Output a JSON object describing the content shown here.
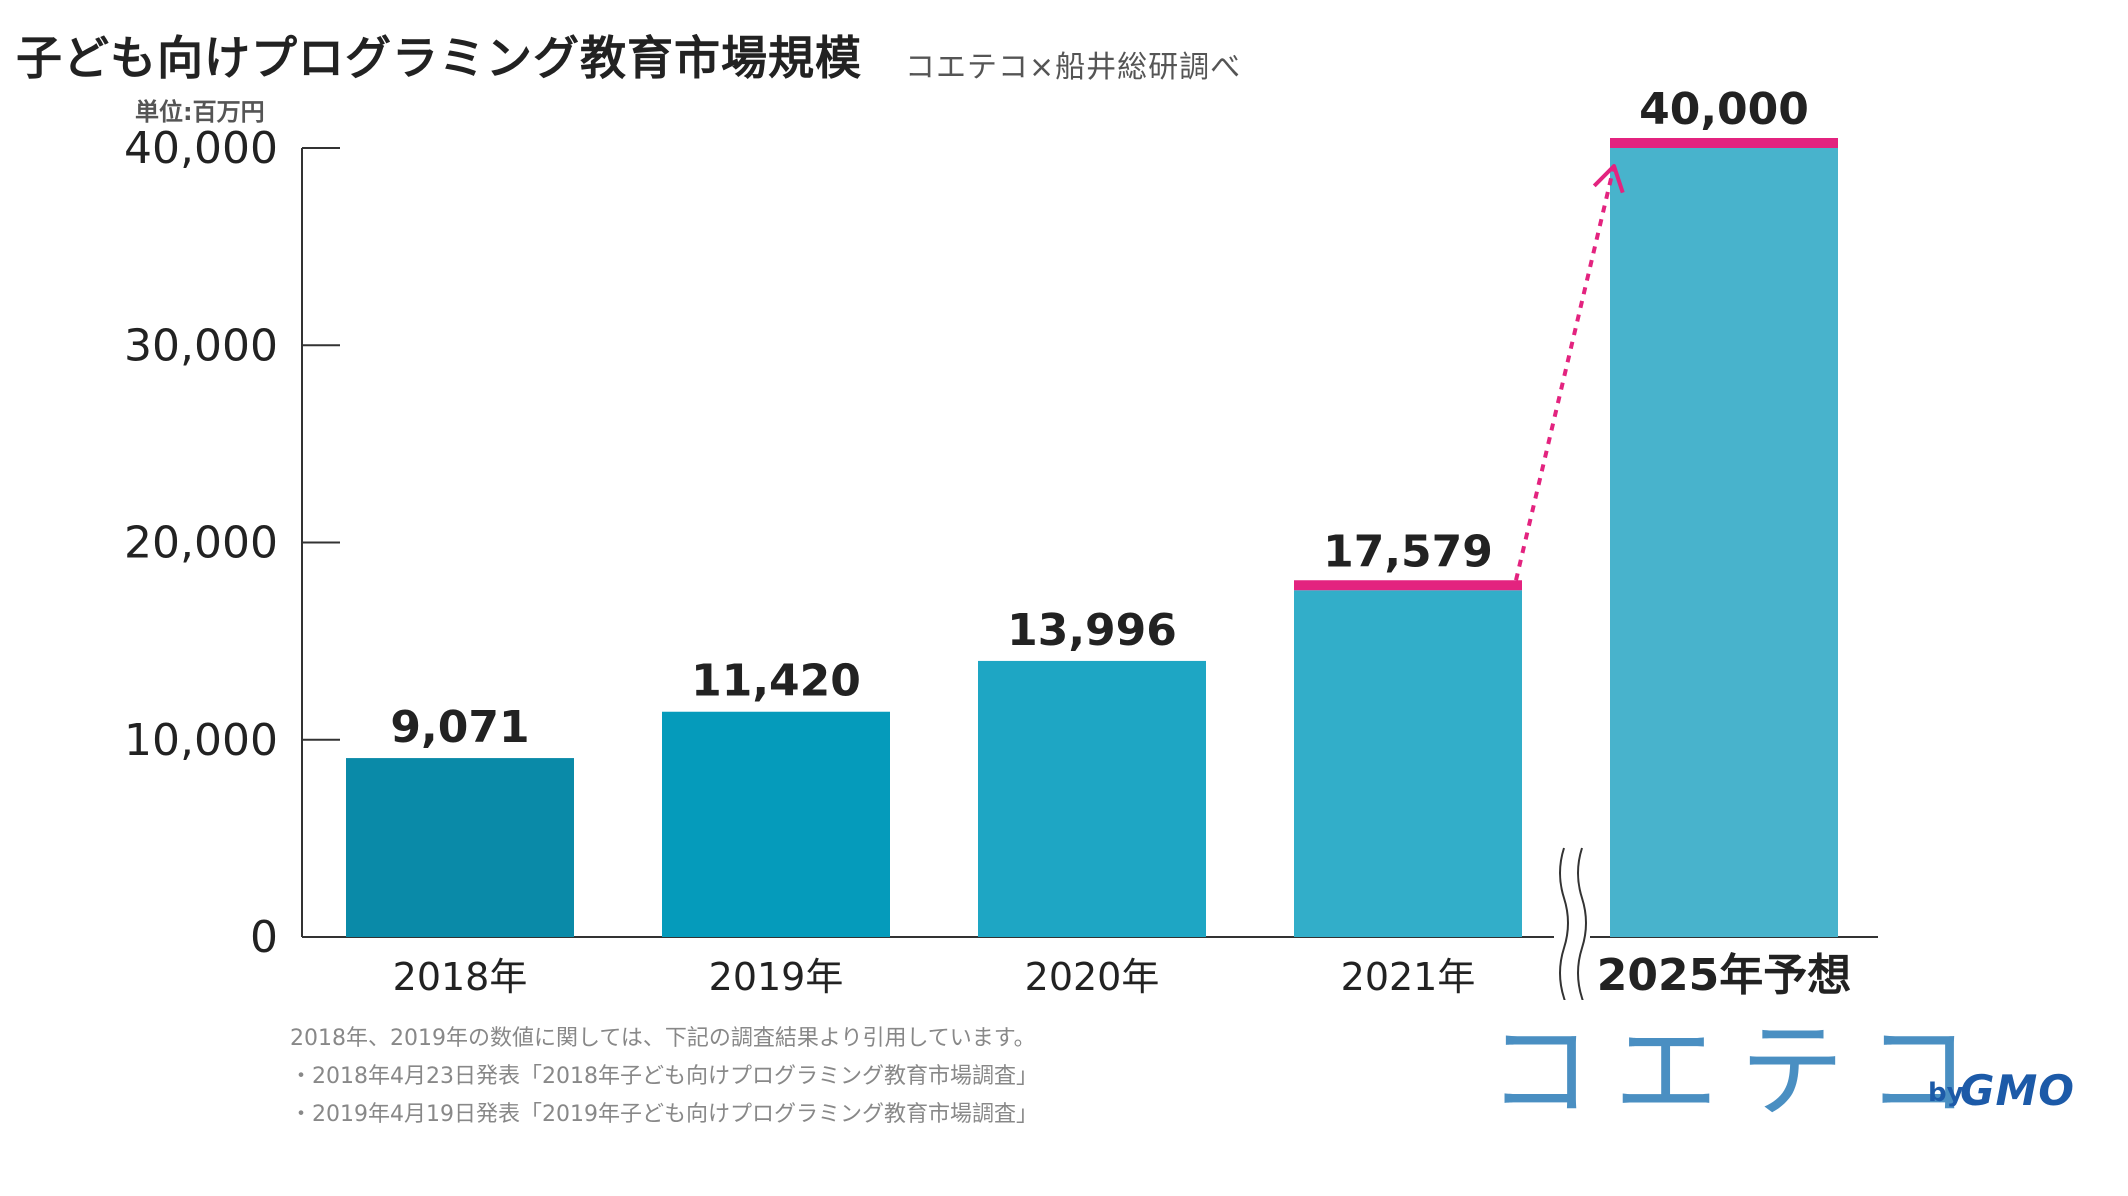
{
  "header": {
    "title": "子ども向けプログラミング教育市場規模",
    "subtitle": "コエテコ×船井総研調べ"
  },
  "chart_data": {
    "type": "bar",
    "unit_label": "単位:百万円",
    "categories": [
      "2018年",
      "2019年",
      "2020年",
      "2021年",
      "2025年予想"
    ],
    "values": [
      9071,
      11420,
      13996,
      17579,
      40000
    ],
    "value_labels": [
      "9,071",
      "11,420",
      "13,996",
      "17,579",
      "40,000"
    ],
    "ylim": [
      0,
      40000
    ],
    "yticks": [
      0,
      10000,
      20000,
      30000,
      40000
    ],
    "ytick_labels": [
      "0",
      "10,000",
      "20,000",
      "30,000",
      "40,000"
    ],
    "colors": [
      "#0a8aa8",
      "#059bbb",
      "#1ea6c4",
      "#32aec9",
      "#48b3cc"
    ],
    "highlight_color": "#e3237f",
    "highlight_categories": [
      "2021年",
      "2025年予想"
    ],
    "axis_break_before": "2025年予想",
    "xlabel": "",
    "ylabel": "",
    "grid": false
  },
  "notes": [
    "2018年、2019年の数値に関しては、下記の調査結果より引用しています。",
    "・2018年4月23日発表「2018年子ども向けプログラミング教育市場調査」",
    "・2019年4月19日発表「2019年子ども向けプログラミング教育市場調査」"
  ],
  "logo": {
    "main": "コエテコ",
    "by": "by",
    "brand": "GMO"
  }
}
